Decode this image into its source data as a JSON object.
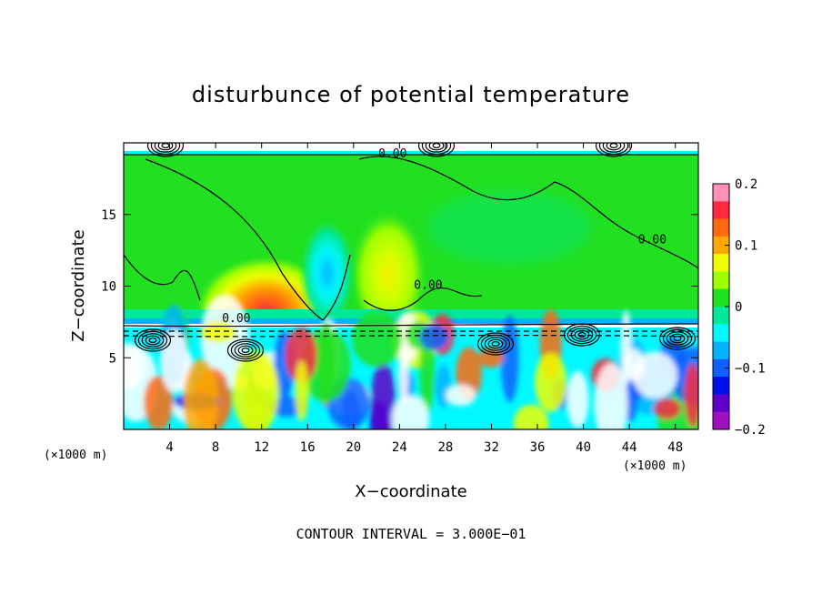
{
  "chart_data": {
    "type": "heatmap",
    "title": "disturbunce of potential temperature",
    "xlabel": "X−coordinate",
    "ylabel": "Z−coordinate",
    "x_unit": "(×1000 m)",
    "x_unit_right": "(×1000 m)",
    "xlim": [
      0,
      50
    ],
    "ylim": [
      0,
      20
    ],
    "x_ticks": [
      4,
      8,
      12,
      16,
      20,
      24,
      28,
      32,
      36,
      40,
      44,
      48
    ],
    "y_ticks": [
      5,
      10,
      15
    ],
    "colorbar": {
      "min": -0.2,
      "max": 0.2,
      "ticks": [
        0.2,
        0.1,
        0,
        -0.1,
        -0.2
      ],
      "tick_labels": [
        "0.2",
        "0.1",
        "0",
        "−0.1",
        "−0.2"
      ],
      "colors": [
        "#ff90b8",
        "#ff2a40",
        "#ff6a10",
        "#ffa800",
        "#f0ff00",
        "#9cff00",
        "#20e020",
        "#00e89a",
        "#00f8ff",
        "#00b4ff",
        "#1060ff",
        "#0010e8",
        "#6000c8",
        "#a010c0"
      ]
    },
    "contour_labels": [
      {
        "text": "0.00",
        "x": 23.4,
        "y": 19.0
      },
      {
        "text": "0.00",
        "x": 46.0,
        "y": 13.0
      },
      {
        "text": "0.00",
        "x": 26.5,
        "y": 9.8
      },
      {
        "text": "0.00",
        "x": 9.8,
        "y": 7.5
      }
    ],
    "features": [
      {
        "kind": "warm anomaly",
        "x": 12.0,
        "y": 8.5,
        "value": 0.15
      },
      {
        "kind": "warm anomaly",
        "x": 22.8,
        "y": 11.0,
        "value": 0.1
      },
      {
        "kind": "cool anomaly",
        "x": 17.5,
        "y": 10.5,
        "value": -0.1
      }
    ],
    "contour_interval_text": "CONTOUR INTERVAL = 3.000E−01",
    "legend": "right",
    "grid": false
  }
}
